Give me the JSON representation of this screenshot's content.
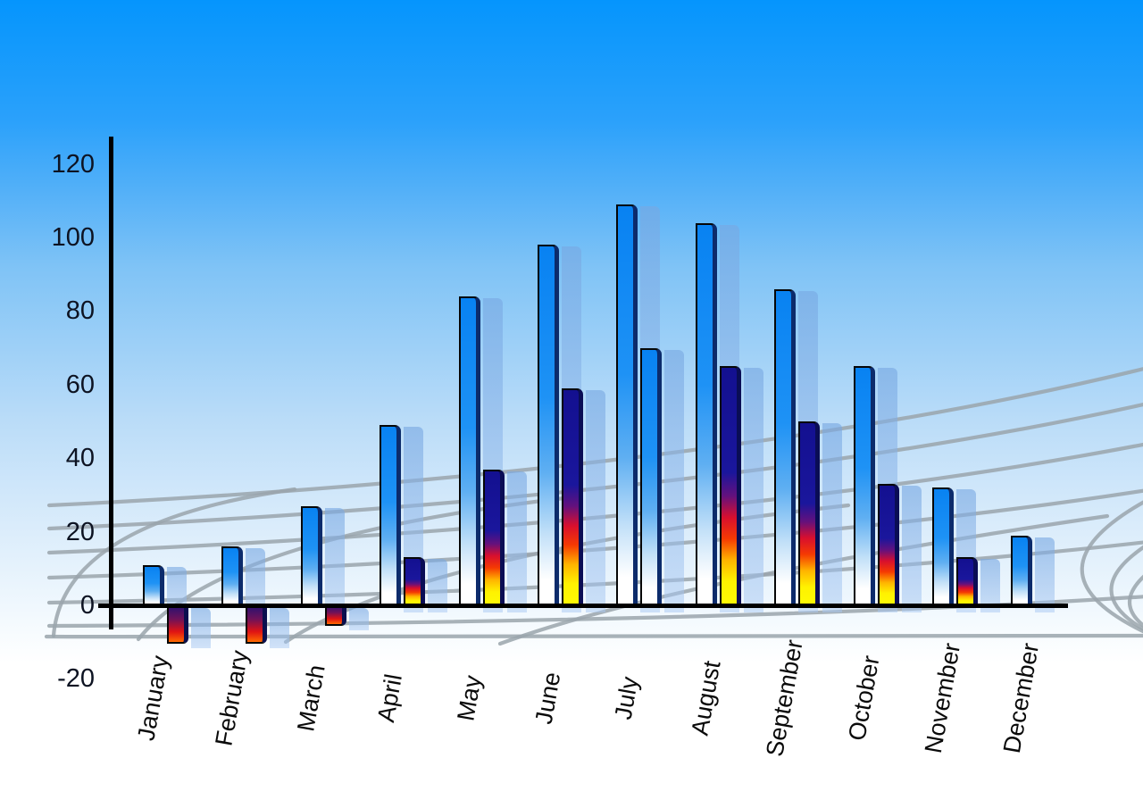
{
  "chart_data": {
    "type": "bar",
    "title": "",
    "xlabel": "",
    "ylabel": "",
    "legend_position": "none",
    "grid": "decorative perspective floor grid",
    "categories": [
      "January",
      "February",
      "March",
      "April",
      "May",
      "June",
      "July",
      "August",
      "September",
      "October",
      "November",
      "December"
    ],
    "series": [
      {
        "name": "primary-blue-bars",
        "values": [
          11,
          16,
          27,
          49,
          84,
          98,
          109,
          104,
          86,
          65,
          32,
          19
        ]
      },
      {
        "name": "secondary-bars",
        "values": [
          -10,
          -10,
          -5,
          13,
          37,
          59,
          70,
          65,
          50,
          33,
          13,
          null
        ],
        "variants": [
          "flame",
          "flame",
          "flame",
          "flame",
          "flame",
          "flame",
          "blue",
          "flame",
          "flame",
          "flame",
          "flame",
          null
        ]
      }
    ],
    "yticks": [
      120,
      100,
      80,
      60,
      40,
      20,
      0,
      -20
    ],
    "ylim": [
      -20,
      120
    ],
    "ytick_step": 20
  },
  "colors": {
    "sky_top": "#0595FD",
    "sky_mid": "#7FC3F6",
    "sky_low": "#DCEDFB",
    "sky_bottom": "#FFFFFF",
    "bar_blue_top": "#0882F2",
    "bar_right_bevel": "#0C2B6B",
    "flame_navy": "#16129A",
    "flame_red": "#E51212",
    "flame_orange": "#FF7300",
    "flame_yellow": "#FFF200",
    "negative_bottom": "#FF6A00",
    "shadow_bar": "rgba(135,175,228,0.58)",
    "grid_line": "#9AA4AC",
    "axis": "#000000",
    "tick_text": "#0D1322",
    "month_text": "#0A0A0A"
  }
}
